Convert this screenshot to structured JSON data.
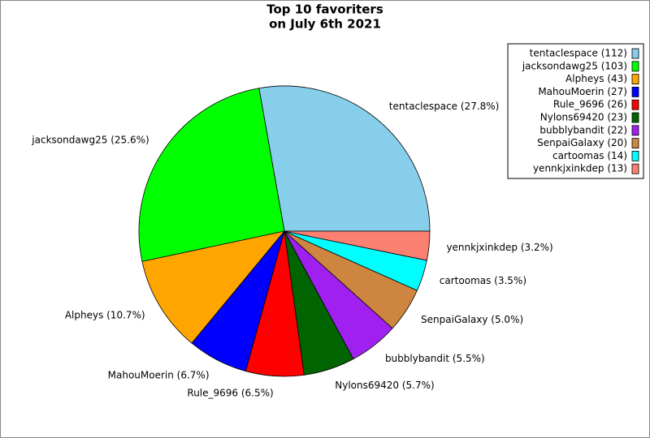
{
  "chart_data": {
    "type": "pie",
    "title": [
      "Top 10 favoriters",
      "on July 6th 2021"
    ],
    "categories": [
      "tentaclespace",
      "jacksondawg25",
      "Alpheys",
      "MahouMoerin",
      "Rule_9696",
      "Nylons69420",
      "bubblybandit",
      "SenpaiGalaxy",
      "cartoomas",
      "yennkjxinkdep"
    ],
    "values": [
      112,
      103,
      43,
      27,
      26,
      23,
      22,
      20,
      14,
      13
    ],
    "legend_labels": [
      "tentaclespace (112)",
      "jacksondawg25 (103)",
      "Alpheys (43)",
      "MahouMoerin (27)",
      "Rule_9696 (26)",
      "Nylons69420 (23)",
      "bubblybandit (22)",
      "SenpaiGalaxy (20)",
      "cartoomas (14)",
      "yennkjxinkdep (13)"
    ],
    "percents": [
      27.8,
      25.6,
      10.7,
      6.7,
      6.5,
      5.7,
      5.5,
      5.0,
      3.5,
      3.2
    ],
    "slice_labels": [
      "tentaclespace (27.8%)",
      "jacksondawg25 (25.6%)",
      "Alpheys (10.7%)",
      "MahouMoerin (6.7%)",
      "Rule_9696 (6.5%)",
      "Nylons69420 (5.7%)",
      "bubblybandit (5.5%)",
      "SenpaiGalaxy (5.0%)",
      "cartoomas (3.5%)",
      "yennkjxinkdep (3.2%)"
    ],
    "colors": [
      "#87ceeb",
      "#00ff00",
      "#ffa500",
      "#0000ff",
      "#ff0000",
      "#006400",
      "#a020f0",
      "#cd853f",
      "#00ffff",
      "#fa8072"
    ],
    "legend": "upper right"
  }
}
